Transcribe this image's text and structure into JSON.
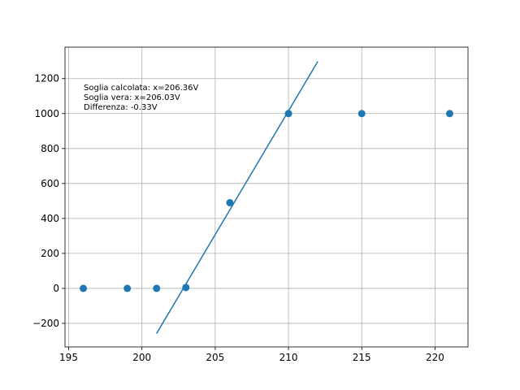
{
  "chart_data": {
    "type": "scatter",
    "title": "",
    "xlabel": "",
    "ylabel": "",
    "xlim": [
      194.75,
      222.25
    ],
    "ylim": [
      -335,
      1380
    ],
    "grid": true,
    "x_ticks": [
      195,
      200,
      205,
      210,
      215,
      220
    ],
    "x_tick_labels": [
      "195",
      "200",
      "205",
      "210",
      "215",
      "220"
    ],
    "y_ticks": [
      -200,
      0,
      200,
      400,
      600,
      800,
      1000,
      1200
    ],
    "y_tick_labels": [
      "−200",
      "0",
      "200",
      "400",
      "600",
      "800",
      "1000",
      "1200"
    ],
    "series": [
      {
        "kind": "scatter",
        "color": "#1f77b4",
        "x": [
          196,
          199,
          201,
          203,
          206,
          210,
          215,
          221
        ],
        "y": [
          0,
          0,
          0,
          5,
          490,
          1000,
          1000,
          1000
        ]
      },
      {
        "kind": "line",
        "color": "#1f77b4",
        "x": [
          201,
          212
        ],
        "y": [
          -258,
          1298
        ]
      }
    ],
    "annotations": [
      "Soglia calcolata: x=206.36V",
      "Soglia vera: x=206.03V",
      "Differenza: -0.33V"
    ]
  }
}
